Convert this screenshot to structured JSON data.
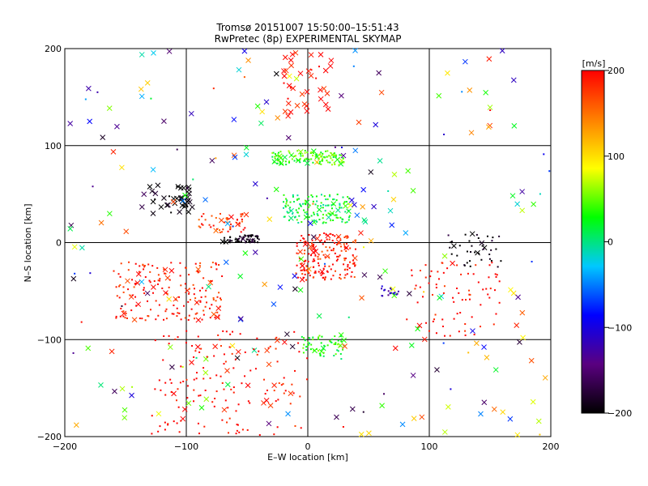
{
  "chart_data": {
    "type": "scatter",
    "title": "Tromsø 20151007 15:50:00–15:51:43",
    "subtitle": "RwPretec (8p) EXPERIMENTAL SKYMAP",
    "xlabel": "E–W location [km]",
    "ylabel": "N–S location [km]",
    "xlim": [
      -200,
      200
    ],
    "ylim": [
      -200,
      200
    ],
    "xticks": [
      -200,
      -100,
      0,
      100,
      200
    ],
    "yticks": [
      -200,
      -100,
      0,
      100,
      200
    ],
    "grid": true,
    "colorbar": {
      "label": "[m/s]",
      "range": [
        -200,
        200
      ],
      "ticks": [
        200,
        100,
        0,
        -100,
        -200
      ],
      "colors": [
        "#000000",
        "#5a0080",
        "#0000ff",
        "#00c8ff",
        "#00ff00",
        "#ffff00",
        "#ff8000",
        "#ff0000"
      ]
    },
    "marker_types": [
      "x",
      "dot"
    ],
    "clusters": [
      {
        "x_range": [
          -130,
          -95
        ],
        "y_range": [
          30,
          60
        ],
        "velocity": -200,
        "marker": "x",
        "count": 40
      },
      {
        "x_range": [
          -70,
          -40
        ],
        "y_range": [
          0,
          8
        ],
        "velocity": -200,
        "marker": "dot",
        "count": 60
      },
      {
        "x_range": [
          -30,
          30
        ],
        "y_range": [
          80,
          95
        ],
        "velocity": 40,
        "marker": "dot",
        "count": 120
      },
      {
        "x_range": [
          -20,
          35
        ],
        "y_range": [
          20,
          50
        ],
        "velocity": 20,
        "marker": "dot",
        "count": 140
      },
      {
        "x_range": [
          -10,
          40
        ],
        "y_range": [
          -40,
          10
        ],
        "velocity": 190,
        "marker": "dot",
        "count": 180
      },
      {
        "x_range": [
          60,
          75
        ],
        "y_range": [
          -55,
          -45
        ],
        "velocity": -110,
        "marker": "dot",
        "count": 20
      },
      {
        "x_range": [
          -5,
          30
        ],
        "y_range": [
          -120,
          -95
        ],
        "velocity": 30,
        "marker": "dot",
        "count": 60
      },
      {
        "x_range": [
          115,
          160
        ],
        "y_range": [
          -25,
          10
        ],
        "velocity": -200,
        "marker": "dot",
        "count": 40
      },
      {
        "x_range": [
          -160,
          -70
        ],
        "y_range": [
          -80,
          -20
        ],
        "velocity": 190,
        "marker": "dot",
        "count": 180
      },
      {
        "x_range": [
          -90,
          -50
        ],
        "y_range": [
          10,
          30
        ],
        "velocity": 180,
        "marker": "dot",
        "count": 50
      },
      {
        "x_range": [
          -200,
          200
        ],
        "y_range": [
          -200,
          200
        ],
        "velocity": 0,
        "marker": "x",
        "count": 250
      },
      {
        "x_range": [
          -130,
          0
        ],
        "y_range": [
          -200,
          -90
        ],
        "velocity": 200,
        "marker": "dot",
        "count": 160
      },
      {
        "x_range": [
          80,
          160
        ],
        "y_range": [
          -100,
          -20
        ],
        "velocity": 200,
        "marker": "dot",
        "count": 80
      },
      {
        "x_range": [
          -20,
          20
        ],
        "y_range": [
          130,
          200
        ],
        "velocity": 200,
        "marker": "x",
        "count": 40
      }
    ]
  }
}
